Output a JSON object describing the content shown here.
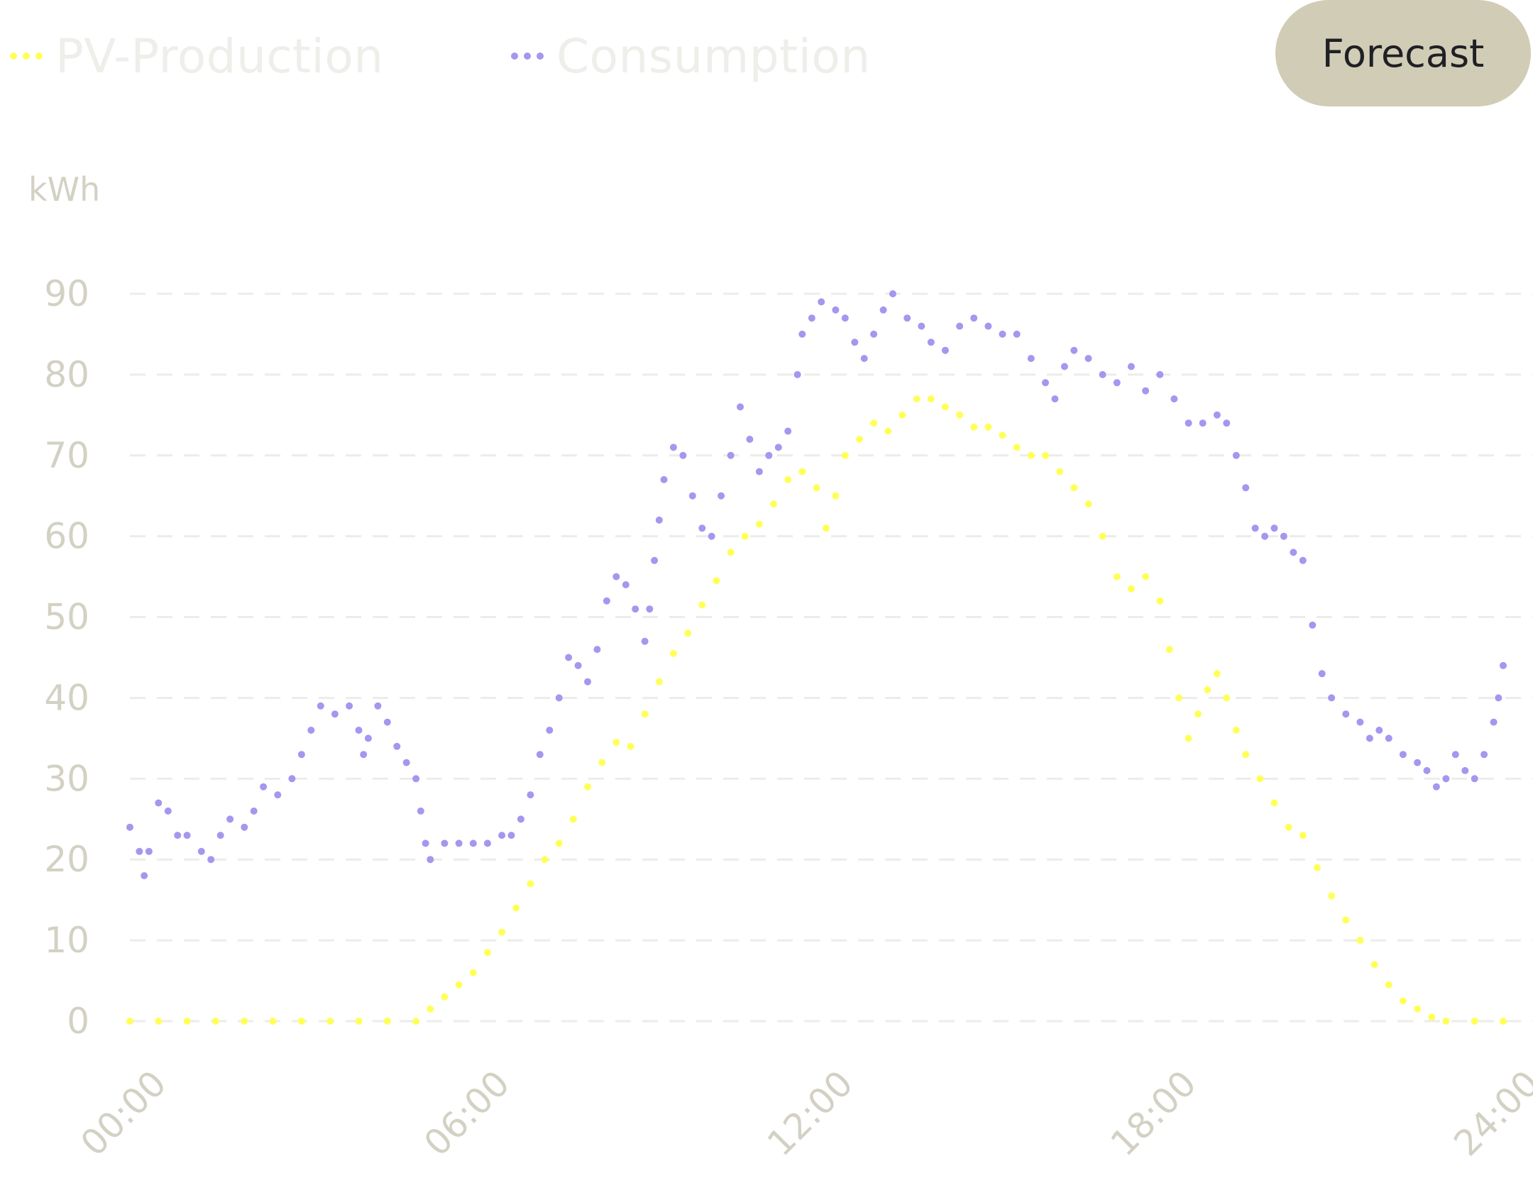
{
  "legend": {
    "pv_label": "PV-Production",
    "consumption_label": "Consumption"
  },
  "forecast_button": {
    "label": "Forecast"
  },
  "colors": {
    "pv": "#ffff5a",
    "consumption": "#a397ef",
    "button_bg": "#d0ccb6",
    "axis_text": "#d3d1c3",
    "grid": "#ececea",
    "legend_text": "#eeeeea"
  },
  "chart_data": {
    "type": "line",
    "style": "dotted",
    "title": "",
    "xlabel": "",
    "ylabel": "kWh",
    "ylim": [
      0,
      90
    ],
    "xlim": [
      "00:00",
      "24:00"
    ],
    "yticks": [
      0,
      10,
      20,
      30,
      40,
      50,
      60,
      70,
      80,
      90
    ],
    "xticks": [
      "00:00",
      "06:00",
      "12:00",
      "18:00",
      "24:00"
    ],
    "grid": true,
    "grid_style": "dashed",
    "series": [
      {
        "name": "PV-Production",
        "color": "#ffff5a",
        "points": [
          [
            "00:00",
            0
          ],
          [
            "00:30",
            0
          ],
          [
            "01:00",
            0
          ],
          [
            "01:30",
            0
          ],
          [
            "02:00",
            0
          ],
          [
            "02:30",
            0
          ],
          [
            "03:00",
            0
          ],
          [
            "03:30",
            0
          ],
          [
            "04:00",
            0
          ],
          [
            "04:30",
            0
          ],
          [
            "05:00",
            0
          ],
          [
            "05:15",
            1.5
          ],
          [
            "05:30",
            3
          ],
          [
            "05:45",
            4.5
          ],
          [
            "06:00",
            6
          ],
          [
            "06:15",
            8.5
          ],
          [
            "06:30",
            11
          ],
          [
            "06:45",
            14
          ],
          [
            "07:00",
            17
          ],
          [
            "07:15",
            20
          ],
          [
            "07:30",
            22
          ],
          [
            "07:45",
            25
          ],
          [
            "08:00",
            29
          ],
          [
            "08:15",
            32
          ],
          [
            "08:30",
            34.5
          ],
          [
            "08:45",
            34
          ],
          [
            "09:00",
            38
          ],
          [
            "09:15",
            42
          ],
          [
            "09:30",
            45.5
          ],
          [
            "09:45",
            48
          ],
          [
            "10:00",
            51.5
          ],
          [
            "10:15",
            54.5
          ],
          [
            "10:30",
            58
          ],
          [
            "10:45",
            60
          ],
          [
            "11:00",
            61.5
          ],
          [
            "11:15",
            64
          ],
          [
            "11:30",
            67
          ],
          [
            "11:45",
            68
          ],
          [
            "12:00",
            66
          ],
          [
            "12:10",
            61
          ],
          [
            "12:20",
            65
          ],
          [
            "12:30",
            70
          ],
          [
            "12:45",
            72
          ],
          [
            "13:00",
            74
          ],
          [
            "13:15",
            73
          ],
          [
            "13:30",
            75
          ],
          [
            "13:45",
            77
          ],
          [
            "14:00",
            77
          ],
          [
            "14:15",
            76
          ],
          [
            "14:30",
            75
          ],
          [
            "14:45",
            73.5
          ],
          [
            "15:00",
            73.5
          ],
          [
            "15:15",
            72.5
          ],
          [
            "15:30",
            71
          ],
          [
            "15:45",
            70
          ],
          [
            "16:00",
            70
          ],
          [
            "16:15",
            68
          ],
          [
            "16:30",
            66
          ],
          [
            "16:45",
            64
          ],
          [
            "17:00",
            60
          ],
          [
            "17:15",
            55
          ],
          [
            "17:30",
            53.5
          ],
          [
            "17:45",
            55
          ],
          [
            "18:00",
            52
          ],
          [
            "18:10",
            46
          ],
          [
            "18:20",
            40
          ],
          [
            "18:30",
            35
          ],
          [
            "18:40",
            38
          ],
          [
            "18:50",
            41
          ],
          [
            "19:00",
            43
          ],
          [
            "19:10",
            40
          ],
          [
            "19:20",
            36
          ],
          [
            "19:30",
            33
          ],
          [
            "19:45",
            30
          ],
          [
            "20:00",
            27
          ],
          [
            "20:15",
            24
          ],
          [
            "20:30",
            23
          ],
          [
            "20:45",
            19
          ],
          [
            "21:00",
            15.5
          ],
          [
            "21:15",
            12.5
          ],
          [
            "21:30",
            10
          ],
          [
            "21:45",
            7
          ],
          [
            "22:00",
            4.5
          ],
          [
            "22:15",
            2.5
          ],
          [
            "22:30",
            1.5
          ],
          [
            "22:45",
            0.5
          ],
          [
            "23:00",
            0
          ],
          [
            "23:30",
            0
          ],
          [
            "24:00",
            0
          ]
        ]
      },
      {
        "name": "Consumption",
        "color": "#a397ef",
        "points": [
          [
            "00:00",
            24
          ],
          [
            "00:10",
            21
          ],
          [
            "00:15",
            18
          ],
          [
            "00:20",
            21
          ],
          [
            "00:30",
            27
          ],
          [
            "00:40",
            26
          ],
          [
            "00:50",
            23
          ],
          [
            "01:00",
            23
          ],
          [
            "01:15",
            21
          ],
          [
            "01:25",
            20
          ],
          [
            "01:35",
            23
          ],
          [
            "01:45",
            25
          ],
          [
            "02:00",
            24
          ],
          [
            "02:10",
            26
          ],
          [
            "02:20",
            29
          ],
          [
            "02:35",
            28
          ],
          [
            "02:50",
            30
          ],
          [
            "03:00",
            33
          ],
          [
            "03:10",
            36
          ],
          [
            "03:20",
            39
          ],
          [
            "03:35",
            38
          ],
          [
            "03:50",
            39
          ],
          [
            "04:00",
            36
          ],
          [
            "04:05",
            33
          ],
          [
            "04:10",
            35
          ],
          [
            "04:20",
            39
          ],
          [
            "04:30",
            37
          ],
          [
            "04:40",
            34
          ],
          [
            "04:50",
            32
          ],
          [
            "05:00",
            30
          ],
          [
            "05:05",
            26
          ],
          [
            "05:10",
            22
          ],
          [
            "05:15",
            20
          ],
          [
            "05:30",
            22
          ],
          [
            "05:45",
            22
          ],
          [
            "06:00",
            22
          ],
          [
            "06:15",
            22
          ],
          [
            "06:30",
            23
          ],
          [
            "06:40",
            23
          ],
          [
            "06:50",
            25
          ],
          [
            "07:00",
            28
          ],
          [
            "07:10",
            33
          ],
          [
            "07:20",
            36
          ],
          [
            "07:30",
            40
          ],
          [
            "07:40",
            45
          ],
          [
            "07:50",
            44
          ],
          [
            "08:00",
            42
          ],
          [
            "08:10",
            46
          ],
          [
            "08:20",
            52
          ],
          [
            "08:30",
            55
          ],
          [
            "08:40",
            54
          ],
          [
            "08:50",
            51
          ],
          [
            "09:00",
            47
          ],
          [
            "09:05",
            51
          ],
          [
            "09:10",
            57
          ],
          [
            "09:15",
            62
          ],
          [
            "09:20",
            67
          ],
          [
            "09:30",
            71
          ],
          [
            "09:40",
            70
          ],
          [
            "09:50",
            65
          ],
          [
            "10:00",
            61
          ],
          [
            "10:10",
            60
          ],
          [
            "10:20",
            65
          ],
          [
            "10:30",
            70
          ],
          [
            "10:40",
            76
          ],
          [
            "10:50",
            72
          ],
          [
            "11:00",
            68
          ],
          [
            "11:10",
            70
          ],
          [
            "11:20",
            71
          ],
          [
            "11:30",
            73
          ],
          [
            "11:40",
            80
          ],
          [
            "11:45",
            85
          ],
          [
            "11:55",
            87
          ],
          [
            "12:05",
            89
          ],
          [
            "12:20",
            88
          ],
          [
            "12:30",
            87
          ],
          [
            "12:40",
            84
          ],
          [
            "12:50",
            82
          ],
          [
            "13:00",
            85
          ],
          [
            "13:10",
            88
          ],
          [
            "13:20",
            90
          ],
          [
            "13:35",
            87
          ],
          [
            "13:50",
            86
          ],
          [
            "14:00",
            84
          ],
          [
            "14:15",
            83
          ],
          [
            "14:30",
            86
          ],
          [
            "14:45",
            87
          ],
          [
            "15:00",
            86
          ],
          [
            "15:15",
            85
          ],
          [
            "15:30",
            85
          ],
          [
            "15:45",
            82
          ],
          [
            "16:00",
            79
          ],
          [
            "16:10",
            77
          ],
          [
            "16:20",
            81
          ],
          [
            "16:30",
            83
          ],
          [
            "16:45",
            82
          ],
          [
            "17:00",
            80
          ],
          [
            "17:15",
            79
          ],
          [
            "17:30",
            81
          ],
          [
            "17:45",
            78
          ],
          [
            "18:00",
            80
          ],
          [
            "18:15",
            77
          ],
          [
            "18:30",
            74
          ],
          [
            "18:45",
            74
          ],
          [
            "19:00",
            75
          ],
          [
            "19:10",
            74
          ],
          [
            "19:20",
            70
          ],
          [
            "19:30",
            66
          ],
          [
            "19:40",
            61
          ],
          [
            "19:50",
            60
          ],
          [
            "20:00",
            61
          ],
          [
            "20:10",
            60
          ],
          [
            "20:20",
            58
          ],
          [
            "20:30",
            57
          ],
          [
            "20:40",
            49
          ],
          [
            "20:50",
            43
          ],
          [
            "21:00",
            40
          ],
          [
            "21:15",
            38
          ],
          [
            "21:30",
            37
          ],
          [
            "21:40",
            35
          ],
          [
            "21:50",
            36
          ],
          [
            "22:00",
            35
          ],
          [
            "22:15",
            33
          ],
          [
            "22:30",
            32
          ],
          [
            "22:40",
            31
          ],
          [
            "22:50",
            29
          ],
          [
            "23:00",
            30
          ],
          [
            "23:10",
            33
          ],
          [
            "23:20",
            31
          ],
          [
            "23:30",
            30
          ],
          [
            "23:40",
            33
          ],
          [
            "23:50",
            37
          ],
          [
            "23:55",
            40
          ],
          [
            "24:00",
            44
          ]
        ]
      }
    ]
  }
}
